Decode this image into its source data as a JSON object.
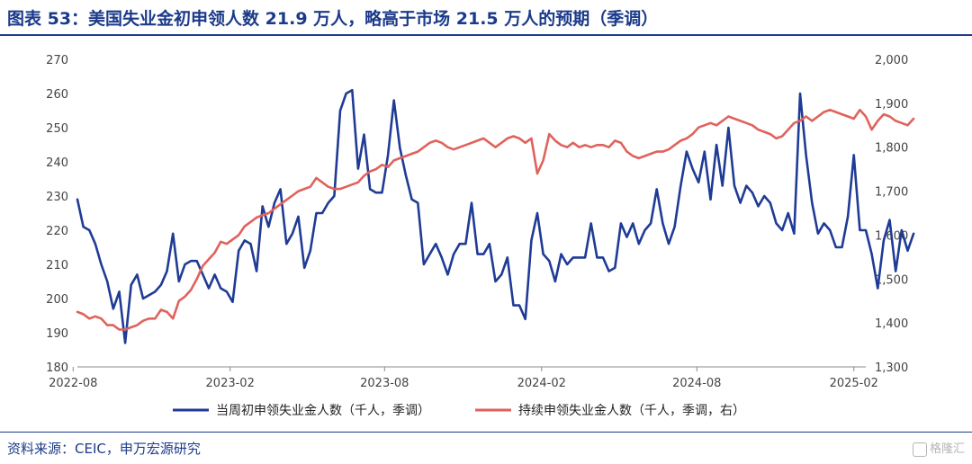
{
  "title": "图表 53：美国失业金初申领人数 21.9 万人，略高于市场 21.5 万人的预期（季调）",
  "source": "资料来源：CEIC，申万宏源研究",
  "watermark": "格隆汇",
  "colors": {
    "initial": "#1f3b95",
    "continuing": "#e0625c",
    "brand": "#1b3a8a"
  },
  "chart_data": {
    "type": "line",
    "title": "",
    "x_range": [
      "2022-08-06",
      "2025-02-15"
    ],
    "x_ticks": [
      "2022-08",
      "2023-02",
      "2023-08",
      "2024-02",
      "2024-08",
      "2025-02"
    ],
    "ylim": [
      180,
      270
    ],
    "y_ticks": [
      180,
      190,
      200,
      210,
      220,
      230,
      240,
      250,
      260,
      270
    ],
    "ylim_right": [
      1300,
      2000
    ],
    "y_ticks_right": [
      "1,300",
      "1,400",
      "1,500",
      "1,600",
      "1,700",
      "1,800",
      "1,900",
      "2,000"
    ],
    "grid": false,
    "legend_position": "bottom",
    "series": [
      {
        "name": "当周初申领失业金人数（千人，季调）",
        "axis": "left",
        "start_date": "2022-08-06",
        "interval_days": 7,
        "values": [
          229,
          221,
          220,
          216,
          210,
          205,
          197,
          202,
          187,
          204,
          207,
          200,
          201,
          202,
          204,
          208,
          219,
          205,
          210,
          211,
          211,
          207,
          203,
          207,
          203,
          202,
          199,
          214,
          217,
          216,
          208,
          227,
          221,
          228,
          232,
          216,
          219,
          224,
          209,
          214,
          225,
          225,
          228,
          230,
          255,
          260,
          261,
          238,
          248,
          232,
          231,
          231,
          242,
          258,
          244,
          236,
          229,
          228,
          210,
          213,
          216,
          212,
          207,
          213,
          216,
          216,
          228,
          213,
          213,
          216,
          205,
          207,
          212,
          198,
          198,
          194,
          217,
          225,
          213,
          211,
          205,
          213,
          210,
          212,
          212,
          212,
          222,
          212,
          212,
          208,
          209,
          222,
          218,
          222,
          216,
          220,
          222,
          232,
          222,
          216,
          221,
          233,
          243,
          238,
          234,
          243,
          229,
          245,
          233,
          250,
          233,
          228,
          233,
          231,
          227,
          230,
          228,
          222,
          220,
          225,
          219,
          260,
          242,
          228,
          219,
          222,
          220,
          215,
          215,
          224,
          242,
          220,
          220,
          213,
          203,
          217,
          223,
          208,
          220,
          214,
          219
        ]
      },
      {
        "name": "持续申领失业金人数（千人，季调，右）",
        "axis": "right",
        "start_date": "2022-08-06",
        "interval_days": 7,
        "values": [
          1425,
          1420,
          1410,
          1415,
          1410,
          1395,
          1395,
          1385,
          1385,
          1390,
          1395,
          1405,
          1410,
          1410,
          1430,
          1425,
          1410,
          1450,
          1460,
          1475,
          1500,
          1530,
          1545,
          1560,
          1585,
          1580,
          1590,
          1600,
          1620,
          1630,
          1640,
          1645,
          1650,
          1660,
          1670,
          1680,
          1690,
          1700,
          1705,
          1710,
          1730,
          1720,
          1710,
          1705,
          1705,
          1710,
          1715,
          1720,
          1735,
          1745,
          1750,
          1760,
          1755,
          1770,
          1775,
          1780,
          1785,
          1790,
          1800,
          1810,
          1815,
          1810,
          1800,
          1795,
          1800,
          1805,
          1810,
          1815,
          1820,
          1810,
          1800,
          1810,
          1820,
          1825,
          1820,
          1810,
          1820,
          1740,
          1770,
          1830,
          1815,
          1805,
          1800,
          1810,
          1800,
          1805,
          1800,
          1805,
          1805,
          1800,
          1815,
          1810,
          1790,
          1780,
          1775,
          1780,
          1785,
          1790,
          1790,
          1795,
          1805,
          1815,
          1820,
          1830,
          1845,
          1850,
          1855,
          1850,
          1860,
          1870,
          1865,
          1860,
          1855,
          1850,
          1840,
          1835,
          1830,
          1820,
          1825,
          1840,
          1855,
          1860,
          1870,
          1860,
          1870,
          1880,
          1885,
          1880,
          1875,
          1870,
          1865,
          1885,
          1870,
          1840,
          1860,
          1875,
          1870,
          1860,
          1855,
          1850,
          1865
        ]
      }
    ]
  }
}
